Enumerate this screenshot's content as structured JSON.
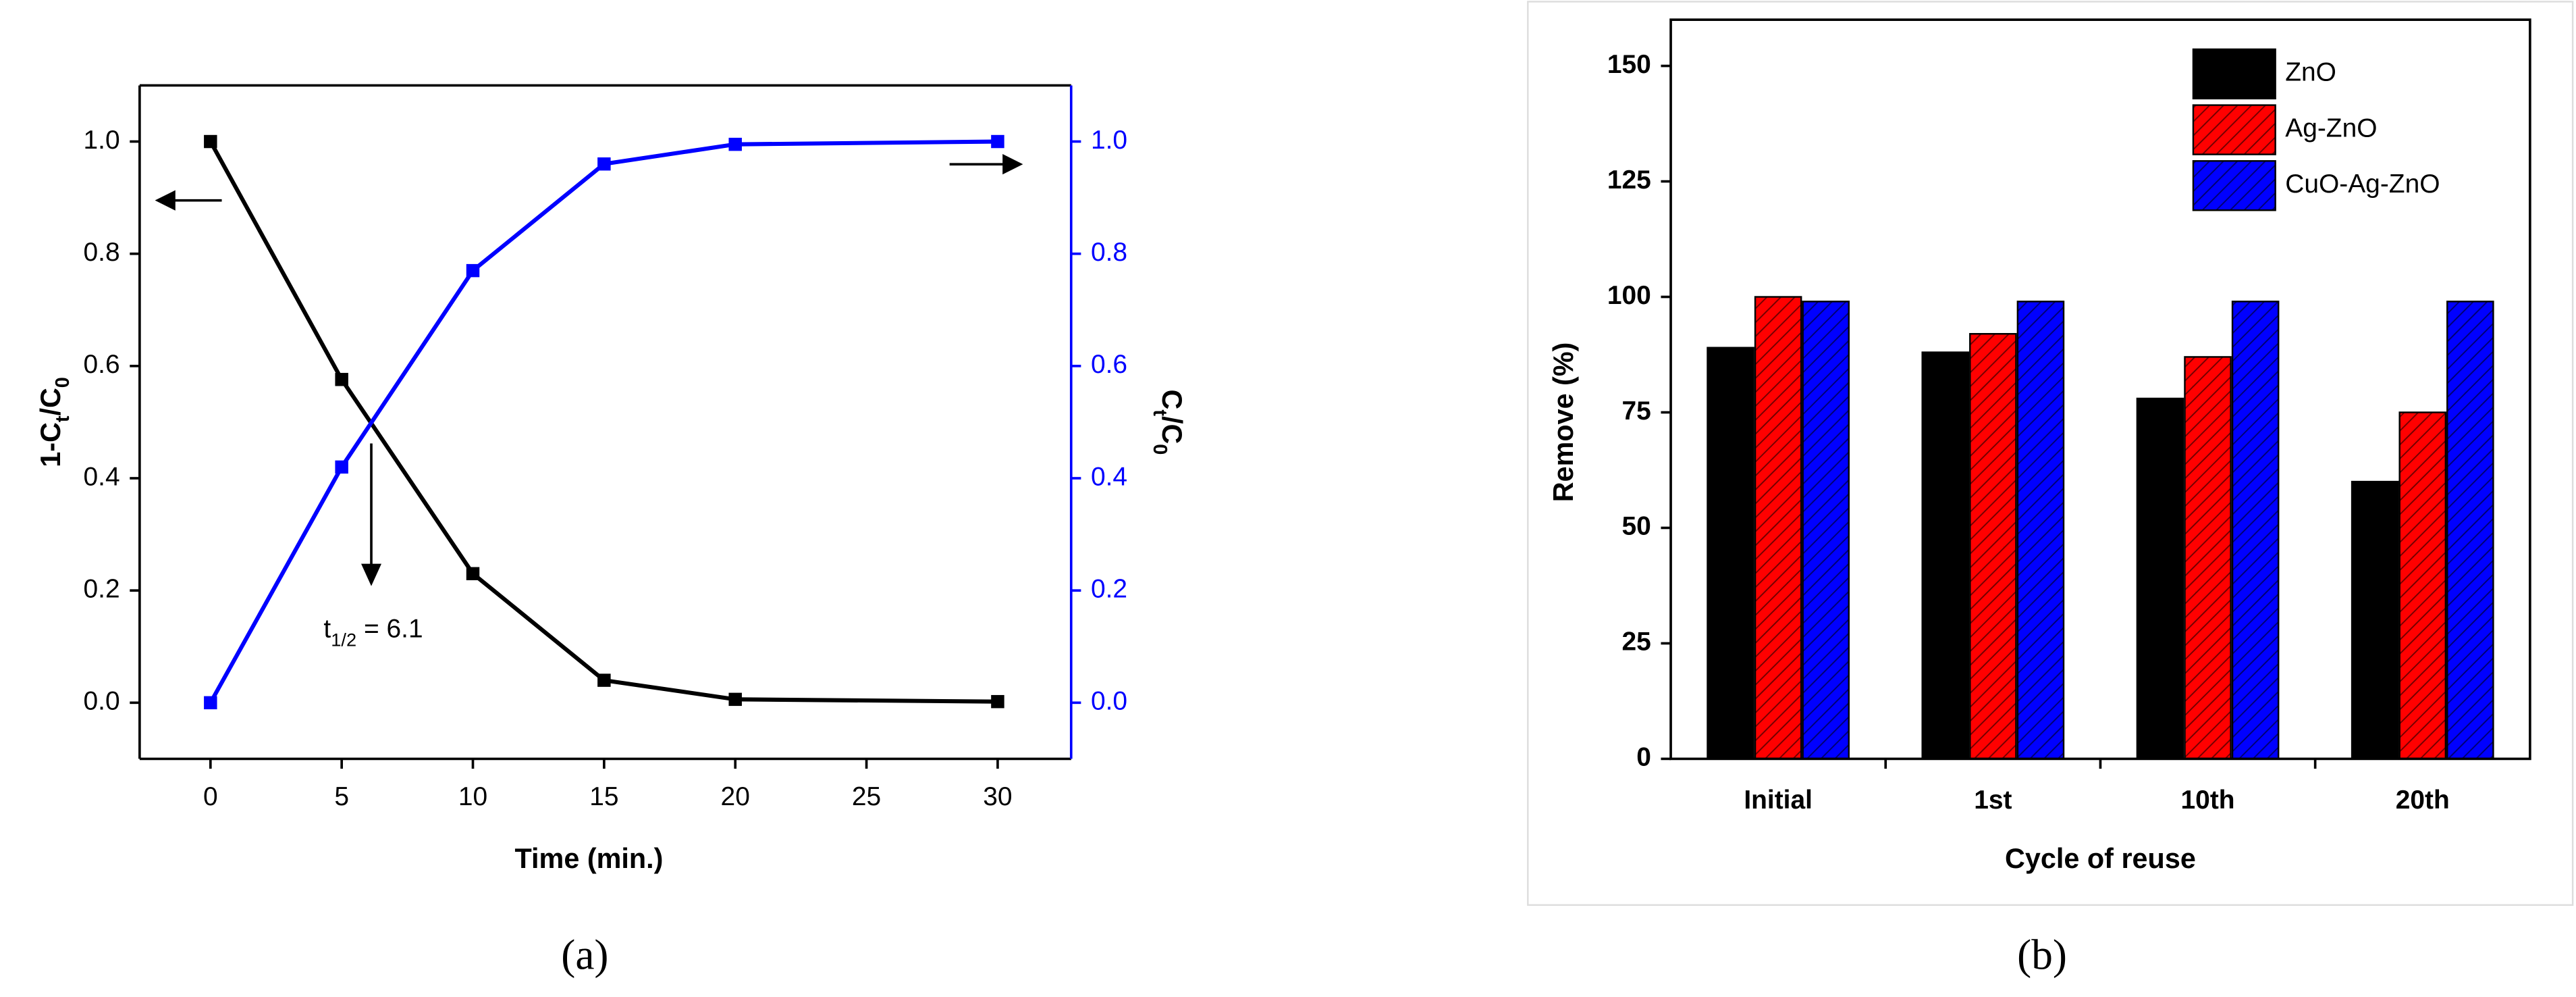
{
  "chart_data": [
    {
      "type": "line",
      "x_label": "Time (min.)",
      "y_label": [
        "1-C",
        "t",
        "/C",
        "0"
      ],
      "y2_label": [
        "C",
        "t",
        "/C",
        "0"
      ],
      "annotation": [
        "t",
        "1/2",
        " = 6.1"
      ],
      "caption": "(a)",
      "xlim": [
        -2.7,
        32.8
      ],
      "xticks": [
        0,
        5,
        10,
        15,
        20,
        25,
        30
      ],
      "ylim": [
        -0.1,
        1.1
      ],
      "yticks": [
        {
          "value": 0,
          "label": "0.0"
        },
        0.2,
        0.4,
        0.6,
        0.8,
        {
          "value": 1,
          "label": "1.0"
        }
      ],
      "y2lim": [
        -0.1,
        1.1
      ],
      "y2ticks": [
        {
          "value": 0,
          "label": "0.0"
        },
        0.2,
        0.4,
        0.6,
        0.8,
        {
          "value": 1,
          "label": "1.0"
        }
      ],
      "x": [
        0,
        5,
        10,
        15,
        20,
        30
      ],
      "series": [
        {
          "color": "#000000",
          "values": [
            1.0,
            0.576,
            0.23,
            0.04,
            0.006,
            0.002
          ]
        },
        {
          "color": "#0000ff",
          "axis": "y2",
          "values": [
            0,
            0.42,
            0.77,
            0.96,
            0.995,
            1.0
          ]
        }
      ]
    },
    {
      "type": "bar",
      "x_label": "Cycle of reuse",
      "y_label": "Remove (%)",
      "caption": "(b)",
      "categories": [
        "Initial",
        "1st",
        "10th",
        "20th"
      ],
      "ylim": [
        0,
        160
      ],
      "yticks": [
        0,
        25,
        50,
        75,
        100,
        125,
        150
      ],
      "legend": "upper right",
      "series": [
        {
          "name": "ZnO",
          "color": "#000000",
          "hatch": false,
          "values": [
            89,
            88,
            78,
            60
          ]
        },
        {
          "name": "Ag-ZnO",
          "color": "#ff0000",
          "hatch": true,
          "values": [
            100,
            92,
            87,
            75
          ]
        },
        {
          "name": "CuO-Ag-ZnO",
          "color": "#0000ff",
          "hatch": true,
          "values": [
            99,
            99,
            99,
            99
          ]
        }
      ]
    }
  ]
}
